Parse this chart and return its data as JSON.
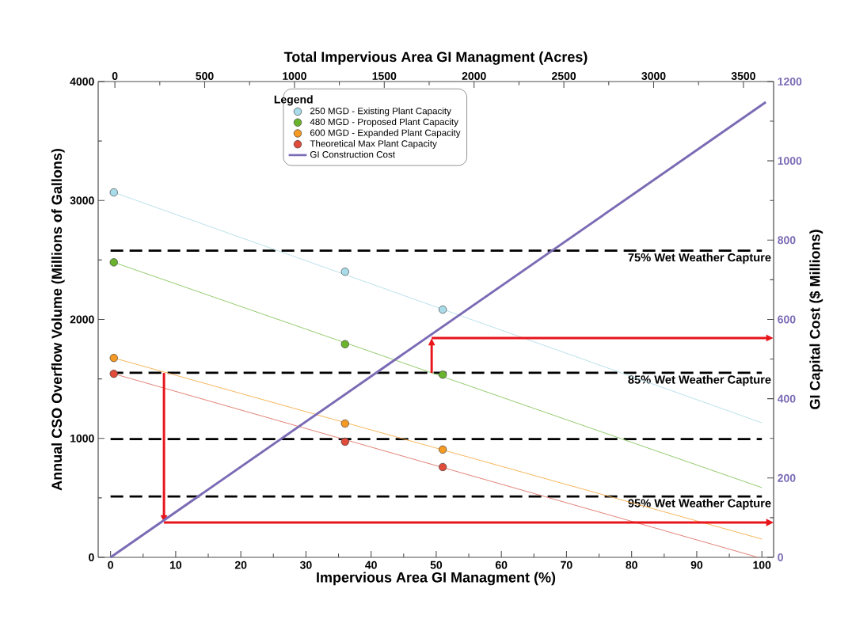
{
  "chart_data": {
    "type": "scatter",
    "xlabel": "Impervious Area GI Managment (%)",
    "x2label": "Total Impervious Area GI Managment (Acres)",
    "ylabel": "Annual CSO Overflow Volume (Millions of Gallons)",
    "y2label": "GI Capital Cost ($ Millions)",
    "legend_title": "Legend",
    "legend": "top",
    "grid": false,
    "xlim": [
      -1.9,
      101.8
    ],
    "xticks": [
      0,
      10,
      20,
      30,
      40,
      50,
      60,
      70,
      80,
      90,
      100
    ],
    "x2lim": [
      -93,
      3668
    ],
    "x2ticks": [
      0,
      500,
      1000,
      1500,
      2000,
      2500,
      3000,
      3500
    ],
    "ylim": [
      0,
      4000
    ],
    "yticks": [
      0,
      1000,
      2000,
      3000,
      4000
    ],
    "y2lim": [
      0,
      1200
    ],
    "y2ticks": [
      0,
      200,
      400,
      600,
      800,
      1000,
      1200
    ],
    "series": [
      {
        "name": "250 MGD - Existing Plant Capacity",
        "marker": "circle",
        "color": "#a9dcea",
        "x": [
          0.5,
          36,
          51
        ],
        "values": [
          3068,
          2401,
          2083
        ]
      },
      {
        "name": "480 MGD - Proposed Plant Capacity",
        "marker": "circle",
        "color": "#6ab42d",
        "x": [
          0.5,
          36,
          51
        ],
        "values": [
          2480,
          1792,
          1536
        ]
      },
      {
        "name": "600 MGD - Expanded Plant Capacity",
        "marker": "circle",
        "color": "#f59a23",
        "x": [
          0.5,
          36,
          51
        ],
        "values": [
          1676,
          1125,
          906
        ]
      },
      {
        "name": "Theoretical Max Plant Capacity",
        "marker": "circle",
        "color": "#e04b3a",
        "x": [
          0.5,
          36,
          51
        ],
        "values": [
          1543,
          972,
          759
        ]
      },
      {
        "type": "line",
        "marker": "none",
        "color": "#b5dfe8",
        "x": [
          0.5,
          100
        ],
        "values": [
          3068,
          1131
        ]
      },
      {
        "type": "line",
        "marker": "none",
        "color": "#8cc763",
        "x": [
          0.5,
          100
        ],
        "values": [
          2480,
          586
        ]
      },
      {
        "type": "line",
        "marker": "none",
        "color": "#f5b050",
        "x": [
          0.5,
          100
        ],
        "values": [
          1676,
          153
        ]
      },
      {
        "type": "line",
        "marker": "none",
        "color": "#e07a6e",
        "x": [
          0.5,
          99.4
        ],
        "values": [
          1543,
          0
        ]
      },
      {
        "name": "GI Construction Cost",
        "type": "line",
        "marker": "none",
        "line_style": "solid",
        "axis": "y2",
        "color": "#7b6bb5",
        "x": [
          0,
          100.6
        ],
        "values": [
          0,
          1148
        ]
      }
    ],
    "ref_lines": [
      {
        "axis": "y",
        "value": 2578,
        "label": "75% Wet Weather Capture",
        "color": "#000000",
        "line_style": "dashed"
      },
      {
        "axis": "y",
        "value": 1551,
        "label": "85% Wet Weather Capture",
        "color": "#000000",
        "line_style": "dashed"
      },
      {
        "axis": "y",
        "value": 994,
        "color": "#000000",
        "line_style": "dashed"
      },
      {
        "axis": "y",
        "value": 512,
        "label": "95% Wet Weather Capture",
        "color": "#000000",
        "line_style": "dashed"
      }
    ]
  }
}
